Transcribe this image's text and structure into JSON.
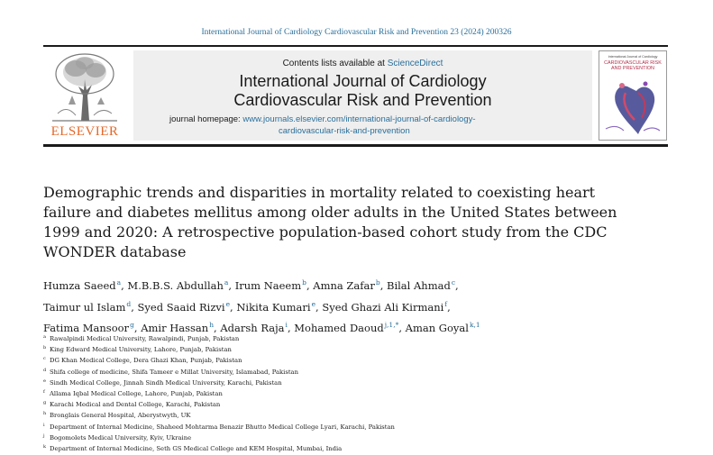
{
  "running_head": "International Journal of Cardiology Cardiovascular Risk and Prevention 23 (2024) 200326",
  "publisher": {
    "logo_word": "ELSEVIER"
  },
  "banner": {
    "contents_prefix": "Contents lists available at ",
    "contents_link": "ScienceDirect",
    "journal_title_line1": "International Journal of Cardiology",
    "journal_title_line2": "Cardiovascular Risk and Prevention",
    "homepage_label": "journal homepage: ",
    "homepage_url_line1": "www.journals.elsevier.com/international-journal-of-cardiology-",
    "homepage_url_line2": "cardiovascular-risk-and-prevention"
  },
  "cover": {
    "subtitle": "International Journal of Cardiology",
    "title_line1": "CARDIOVASCULAR RISK",
    "title_line2": "AND PREVENTION"
  },
  "article": {
    "title": "Demographic trends and disparities in mortality related to coexisting heart failure and diabetes mellitus among older adults in the United States between 1999 and 2020: A retrospective population-based cohort study from the CDC WONDER database",
    "authors": [
      {
        "name": "Humza Saeed",
        "sup": "a",
        "sep": ", "
      },
      {
        "name": "M.B.B.S. Abdullah",
        "sup": "a",
        "sep": ", "
      },
      {
        "name": "Irum Naeem",
        "sup": "b",
        "sep": ", "
      },
      {
        "name": "Amna Zafar",
        "sup": "b",
        "sep": ", "
      },
      {
        "name": "Bilal Ahmad",
        "sup": "c",
        "sep": ", "
      },
      {
        "name": "Taimur ul Islam",
        "sup": "d",
        "sep": ", "
      },
      {
        "name": "Syed Saaid Rizvi",
        "sup": "e",
        "sep": ", "
      },
      {
        "name": "Nikita Kumari",
        "sup": "e",
        "sep": ", "
      },
      {
        "name": "Syed Ghazi Ali Kirmani",
        "sup": "f",
        "sep": ", "
      },
      {
        "name": "Fatima Mansoor",
        "sup": "g",
        "sep": ", "
      },
      {
        "name": "Amir Hassan",
        "sup": "h",
        "sep": ", "
      },
      {
        "name": "Adarsh Raja",
        "sup": "i",
        "sep": ", "
      },
      {
        "name": "Mohamed Daoud",
        "sup": "j,1,*",
        "sep": ", "
      },
      {
        "name": "Aman Goyal",
        "sup": "k,1",
        "sep": ""
      }
    ],
    "affiliations": [
      {
        "key": "a",
        "text": "Rawalpindi Medical University, Rawalpindi, Punjab, Pakistan"
      },
      {
        "key": "b",
        "text": "King Edward Medical University, Lahore, Punjab, Pakistan"
      },
      {
        "key": "c",
        "text": "DG Khan Medical College, Dera Ghazi Khan, Punjab, Pakistan"
      },
      {
        "key": "d",
        "text": "Shifa college of medicine, Shifa Tameer e Millat University, Islamabad, Pakistan"
      },
      {
        "key": "e",
        "text": "Sindh Medical College, Jinnah Sindh Medical University, Karachi, Pakistan"
      },
      {
        "key": "f",
        "text": "Allama Iqbal Medical College, Lahore, Punjab, Pakistan"
      },
      {
        "key": "g",
        "text": "Karachi Medical and Dental College, Karachi, Pakistan"
      },
      {
        "key": "h",
        "text": "Bronglais General Hospital, Aberystwyth, UK"
      },
      {
        "key": "i",
        "text": "Department of Internal Medicine, Shaheed Mohtarma Benazir Bhutto Medical College Lyari, Karachi, Pakistan"
      },
      {
        "key": "j",
        "text": "Bogomolets Medical University, Kyiv, Ukraine"
      },
      {
        "key": "k",
        "text": "Department of Internal Medicine, Seth GS Medical College and KEM Hospital, Mumbai, India"
      }
    ]
  }
}
